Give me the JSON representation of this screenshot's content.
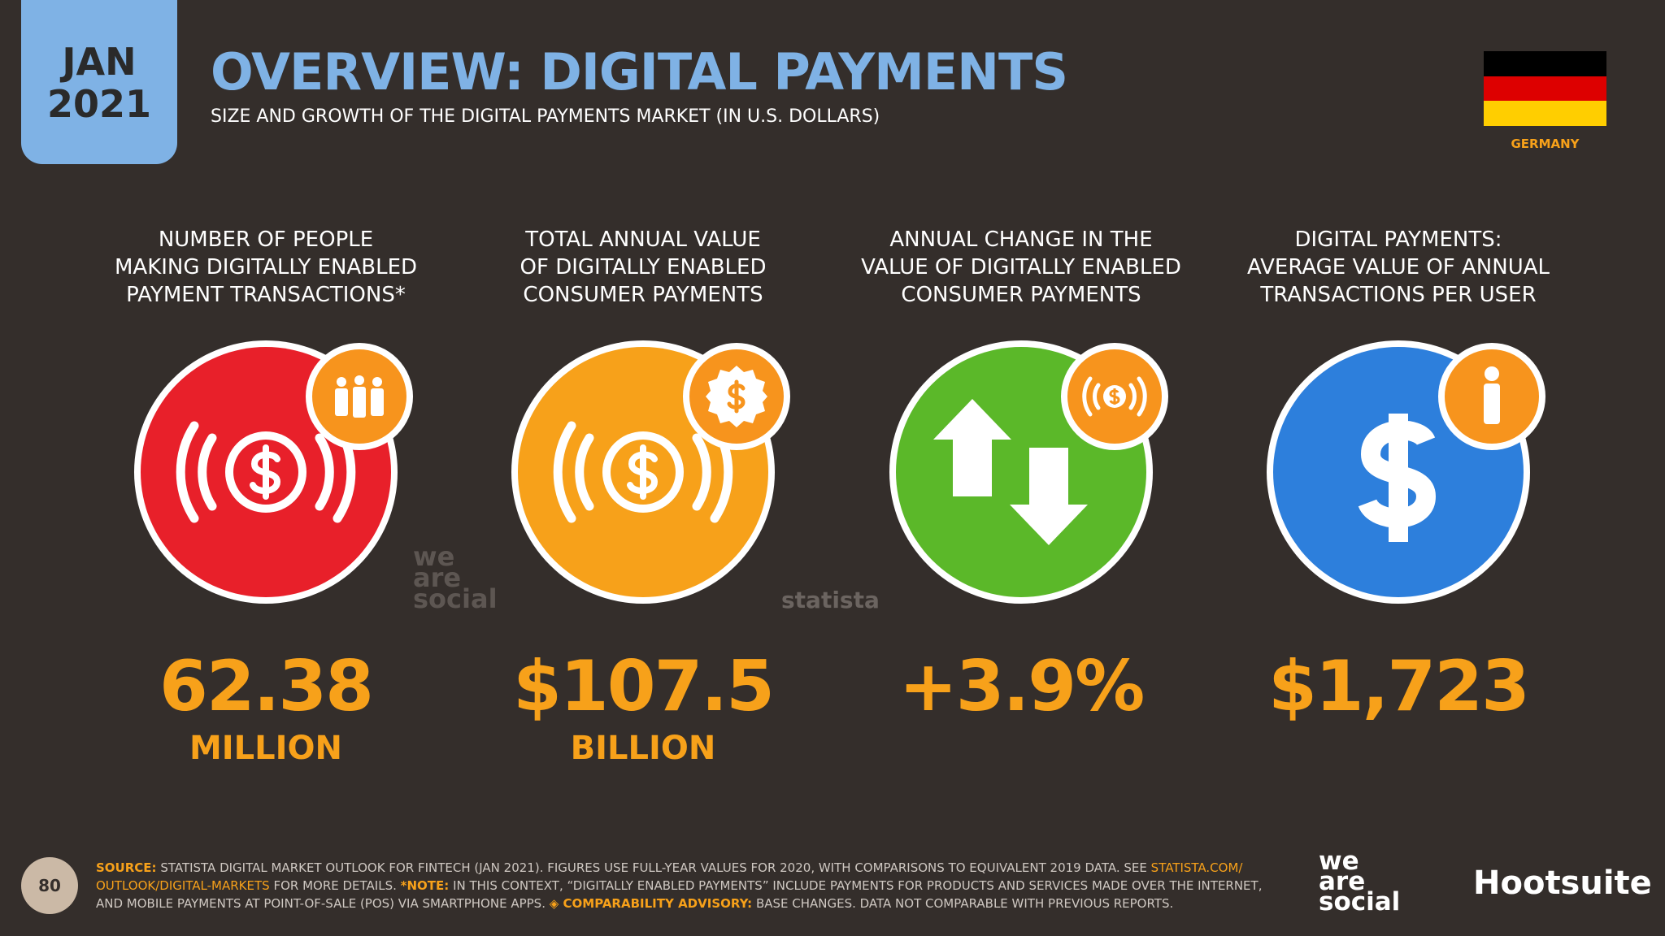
{
  "header": {
    "month": "JAN",
    "year": "2021",
    "title": "OVERVIEW: DIGITAL PAYMENTS",
    "subtitle": "SIZE AND GROWTH OF THE DIGITAL PAYMENTS MARKET (IN U.S. DOLLARS)",
    "country": "GERMANY"
  },
  "stats": [
    {
      "label": [
        "NUMBER OF PEOPLE",
        "MAKING DIGITALLY ENABLED",
        "PAYMENT TRANSACTIONS*"
      ],
      "value": "62.38",
      "unit": "MILLION"
    },
    {
      "label": [
        "TOTAL ANNUAL VALUE",
        "OF DIGITALLY ENABLED",
        "CONSUMER PAYMENTS"
      ],
      "value": "$107.5",
      "unit": "BILLION"
    },
    {
      "label": [
        "ANNUAL CHANGE IN THE",
        "VALUE OF DIGITALLY ENABLED",
        "CONSUMER PAYMENTS"
      ],
      "value": "+3.9%"
    },
    {
      "label": [
        "DIGITAL PAYMENTS:",
        "AVERAGE VALUE OF ANNUAL",
        "TRANSACTIONS PER USER"
      ],
      "value": "$1,723"
    }
  ],
  "footer": {
    "page_number": "80",
    "source_label": "SOURCE:",
    "source_text": "STATISTA DIGITAL MARKET OUTLOOK FOR FINTECH (JAN 2021). FIGURES USE FULL-YEAR VALUES FOR 2020, WITH COMPARISONS TO EQUIVALENT 2019 DATA. SEE",
    "source_link": "STATISTA.COM/ OUTLOOK/DIGITAL-MARKETS",
    "source_more": "FOR MORE DETAILS.",
    "note_label": "*NOTE:",
    "note_text": "IN THIS CONTEXT, “DIGITALLY ENABLED PAYMENTS” INCLUDE PAYMENTS FOR PRODUCTS AND SERVICES MADE OVER THE INTERNET, AND MOBILE PAYMENTS AT POINT-OF-SALE (POS) VIA SMARTPHONE APPS.",
    "advisory_label": "◈ COMPARABILITY ADVISORY:",
    "advisory_text": "BASE CHANGES. DATA NOT COMPARABLE WITH PREVIOUS REPORTS."
  },
  "brands": {
    "we_are_social": "we are social",
    "hootsuite": "Hootsuite",
    "statista": "statista"
  }
}
